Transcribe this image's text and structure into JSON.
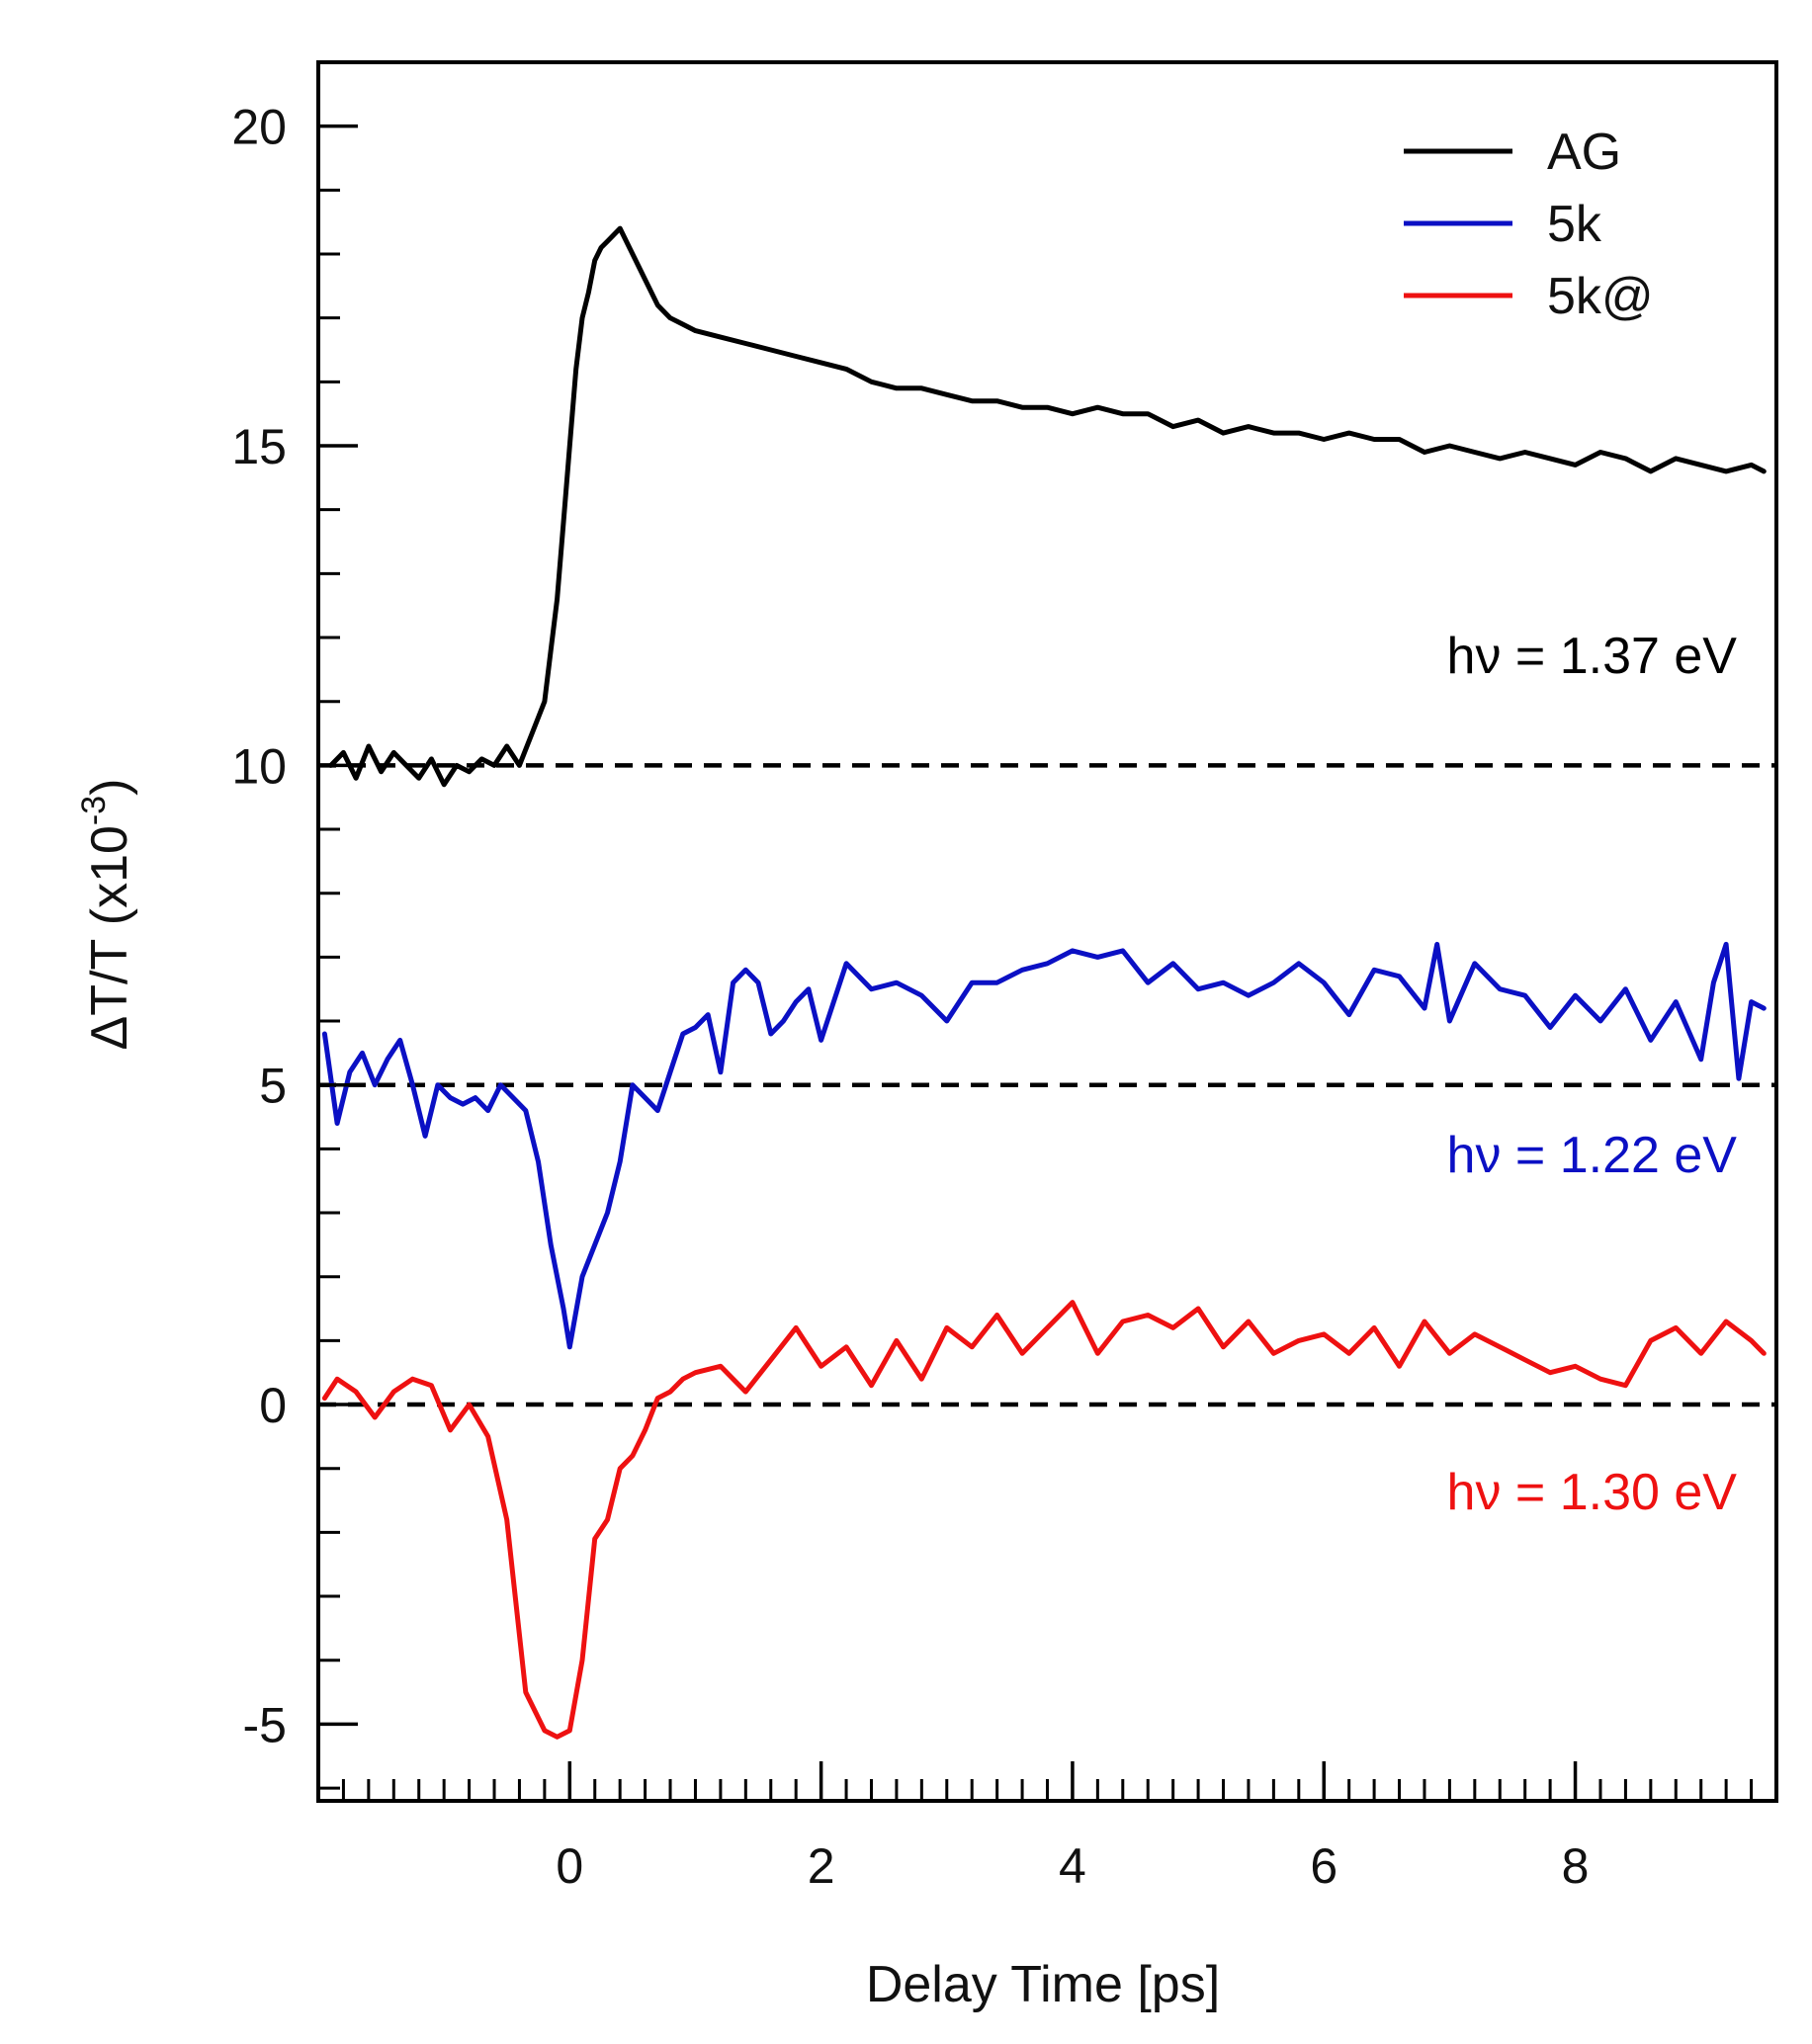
{
  "chart_data": {
    "type": "line",
    "title": "",
    "xlabel": "Delay Time [ps]",
    "ylabel_main": "ΔT/T (x10",
    "ylabel_exp": "-3",
    "ylabel_close": ")",
    "xlim": [
      -2.0,
      9.6
    ],
    "ylim": [
      -6.2,
      21.0
    ],
    "xticks": [
      0,
      2,
      4,
      6,
      8
    ],
    "xtick_labels": [
      "0",
      "2",
      "4",
      "6",
      "8"
    ],
    "yticks": [
      -5,
      0,
      5,
      10,
      15,
      20
    ],
    "ytick_labels": [
      "-5",
      "0",
      "5",
      "10",
      "15",
      "20"
    ],
    "x_minor_step": 0.2,
    "y_minor_step": 1,
    "reference_lines": [
      10,
      5,
      0
    ],
    "legend_position": "top-right",
    "series": [
      {
        "name": "AG",
        "color": "#000000",
        "annotation": "hν = 1.37 eV",
        "x": [
          -1.9,
          -1.8,
          -1.7,
          -1.6,
          -1.5,
          -1.4,
          -1.3,
          -1.2,
          -1.1,
          -1.0,
          -0.9,
          -0.8,
          -0.7,
          -0.6,
          -0.5,
          -0.4,
          -0.3,
          -0.2,
          -0.15,
          -0.1,
          -0.05,
          0.0,
          0.05,
          0.1,
          0.15,
          0.2,
          0.25,
          0.3,
          0.4,
          0.5,
          0.6,
          0.7,
          0.8,
          0.9,
          1.0,
          1.2,
          1.4,
          1.6,
          1.8,
          2.0,
          2.2,
          2.4,
          2.6,
          2.8,
          3.0,
          3.2,
          3.4,
          3.6,
          3.8,
          4.0,
          4.2,
          4.4,
          4.6,
          4.8,
          5.0,
          5.2,
          5.4,
          5.6,
          5.8,
          6.0,
          6.2,
          6.4,
          6.6,
          6.8,
          7.0,
          7.2,
          7.4,
          7.6,
          7.8,
          8.0,
          8.2,
          8.4,
          8.6,
          8.8,
          9.0,
          9.2,
          9.4,
          9.5
        ],
        "y": [
          10.0,
          10.2,
          9.8,
          10.3,
          9.9,
          10.2,
          10.0,
          9.8,
          10.1,
          9.7,
          10.0,
          9.9,
          10.1,
          10.0,
          10.3,
          10.0,
          10.5,
          11.0,
          11.8,
          12.6,
          13.8,
          15.0,
          16.2,
          17.0,
          17.4,
          17.9,
          18.1,
          18.2,
          18.4,
          18.0,
          17.6,
          17.2,
          17.0,
          16.9,
          16.8,
          16.7,
          16.6,
          16.5,
          16.4,
          16.3,
          16.2,
          16.0,
          15.9,
          15.9,
          15.8,
          15.7,
          15.7,
          15.6,
          15.6,
          15.5,
          15.6,
          15.5,
          15.5,
          15.3,
          15.4,
          15.2,
          15.3,
          15.2,
          15.2,
          15.1,
          15.2,
          15.1,
          15.1,
          14.9,
          15.0,
          14.9,
          14.8,
          14.9,
          14.8,
          14.7,
          14.9,
          14.8,
          14.6,
          14.8,
          14.7,
          14.6,
          14.7,
          14.6
        ]
      },
      {
        "name": "5k",
        "color": "#0b10c4",
        "annotation": "hν = 1.22 eV",
        "x": [
          -1.95,
          -1.85,
          -1.75,
          -1.65,
          -1.55,
          -1.45,
          -1.35,
          -1.25,
          -1.15,
          -1.05,
          -0.95,
          -0.85,
          -0.75,
          -0.65,
          -0.55,
          -0.45,
          -0.35,
          -0.25,
          -0.15,
          -0.05,
          0.0,
          0.1,
          0.2,
          0.3,
          0.4,
          0.5,
          0.6,
          0.7,
          0.8,
          0.9,
          1.0,
          1.1,
          1.2,
          1.3,
          1.4,
          1.5,
          1.6,
          1.7,
          1.8,
          1.9,
          2.0,
          2.2,
          2.4,
          2.6,
          2.8,
          3.0,
          3.2,
          3.4,
          3.6,
          3.8,
          4.0,
          4.2,
          4.4,
          4.6,
          4.8,
          5.0,
          5.2,
          5.4,
          5.6,
          5.8,
          6.0,
          6.2,
          6.4,
          6.6,
          6.8,
          6.9,
          7.0,
          7.2,
          7.4,
          7.6,
          7.8,
          8.0,
          8.2,
          8.4,
          8.6,
          8.8,
          9.0,
          9.1,
          9.2,
          9.3,
          9.4,
          9.5
        ],
        "y": [
          5.8,
          4.4,
          5.2,
          5.5,
          5.0,
          5.4,
          5.7,
          5.0,
          4.2,
          5.0,
          4.8,
          4.7,
          4.8,
          4.6,
          5.0,
          4.8,
          4.6,
          3.8,
          2.5,
          1.5,
          0.9,
          2.0,
          2.5,
          3.0,
          3.8,
          5.0,
          4.8,
          4.6,
          5.2,
          5.8,
          5.9,
          6.1,
          5.2,
          6.6,
          6.8,
          6.6,
          5.8,
          6.0,
          6.3,
          6.5,
          5.7,
          6.9,
          6.5,
          6.6,
          6.4,
          6.0,
          6.6,
          6.6,
          6.8,
          6.9,
          7.1,
          7.0,
          7.1,
          6.6,
          6.9,
          6.5,
          6.6,
          6.4,
          6.6,
          6.9,
          6.6,
          6.1,
          6.8,
          6.7,
          6.2,
          7.2,
          6.0,
          6.9,
          6.5,
          6.4,
          5.9,
          6.4,
          6.0,
          6.5,
          5.7,
          6.3,
          5.4,
          6.6,
          7.2,
          5.1,
          6.3,
          6.2
        ]
      },
      {
        "name": "5k@",
        "color": "#ee1111",
        "annotation": "hν = 1.30 eV",
        "x": [
          -1.95,
          -1.85,
          -1.7,
          -1.55,
          -1.4,
          -1.25,
          -1.1,
          -0.95,
          -0.8,
          -0.65,
          -0.5,
          -0.35,
          -0.2,
          -0.1,
          0.0,
          0.1,
          0.2,
          0.3,
          0.4,
          0.5,
          0.6,
          0.7,
          0.8,
          0.9,
          1.0,
          1.2,
          1.4,
          1.6,
          1.8,
          2.0,
          2.2,
          2.4,
          2.6,
          2.8,
          3.0,
          3.2,
          3.4,
          3.6,
          3.8,
          4.0,
          4.2,
          4.4,
          4.6,
          4.8,
          5.0,
          5.2,
          5.4,
          5.6,
          5.8,
          6.0,
          6.2,
          6.4,
          6.6,
          6.8,
          7.0,
          7.2,
          7.4,
          7.6,
          7.8,
          8.0,
          8.2,
          8.4,
          8.6,
          8.8,
          9.0,
          9.2,
          9.4,
          9.5
        ],
        "y": [
          0.1,
          0.4,
          0.2,
          -0.2,
          0.2,
          0.4,
          0.3,
          -0.4,
          0.0,
          -0.5,
          -1.8,
          -4.5,
          -5.1,
          -5.2,
          -5.1,
          -4.0,
          -2.1,
          -1.8,
          -1.0,
          -0.8,
          -0.4,
          0.1,
          0.2,
          0.4,
          0.5,
          0.6,
          0.2,
          0.7,
          1.2,
          0.6,
          0.9,
          0.3,
          1.0,
          0.4,
          1.2,
          0.9,
          1.4,
          0.8,
          1.2,
          1.6,
          0.8,
          1.3,
          1.4,
          1.2,
          1.5,
          0.9,
          1.3,
          0.8,
          1.0,
          1.1,
          0.8,
          1.2,
          0.6,
          1.3,
          0.8,
          1.1,
          0.9,
          0.7,
          0.5,
          0.6,
          0.4,
          0.3,
          1.0,
          1.2,
          0.8,
          1.3,
          1.0,
          0.8
        ]
      }
    ]
  }
}
